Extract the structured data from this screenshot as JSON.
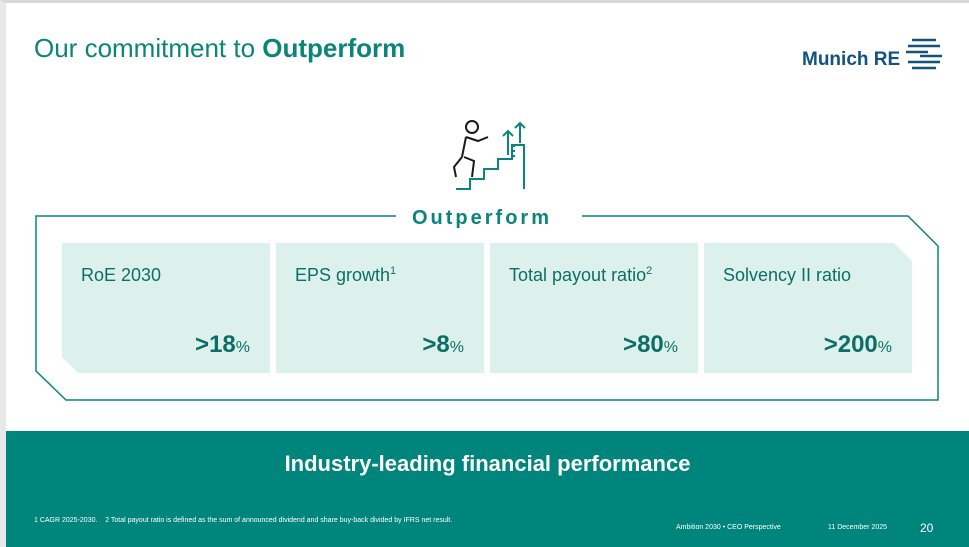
{
  "header": {
    "title_lead": "Our commitment to ",
    "title_bold": "Outperform",
    "logo": "Munich RE"
  },
  "section": {
    "label": "Outperform"
  },
  "cards": [
    {
      "label": "RoE 2030",
      "value": ">18",
      "unit": "%"
    },
    {
      "label": "EPS growth",
      "note": "1",
      "value": ">8",
      "unit": "%"
    },
    {
      "label": "Total payout ratio",
      "note": "2",
      "value": ">80",
      "unit": "%"
    },
    {
      "label": "Solvency II ratio",
      "value": ">200",
      "unit": "%"
    }
  ],
  "banner": {
    "text": "Industry-leading financial performance"
  },
  "footer": {
    "footnote": "1 CAGR 2025-2030.    2 Total payout ratio is defined as the sum of announced dividend and share buy-back divided by IFRS net result.",
    "event": "Ambition 2030 • CEO Perspective",
    "date": "11 December 2025",
    "page": "20"
  }
}
